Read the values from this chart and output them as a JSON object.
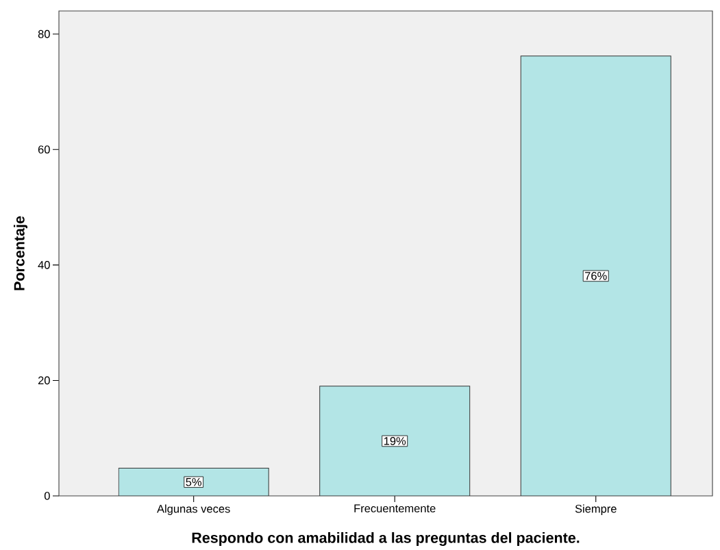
{
  "chart_data": {
    "type": "bar",
    "xlabel": "Respondo con amabilidad a las preguntas del paciente.",
    "ylabel": "Porcentaje",
    "categories": [
      "Algunas veces",
      "Frecuentemente",
      "Siempre"
    ],
    "values": [
      4.8,
      19.0,
      76.2
    ],
    "value_labels": [
      "5%",
      "19%",
      "76%"
    ],
    "color": "#b3e5e6",
    "ylim": [
      0,
      84
    ],
    "yticks": [
      0,
      20,
      40,
      60,
      80
    ]
  }
}
